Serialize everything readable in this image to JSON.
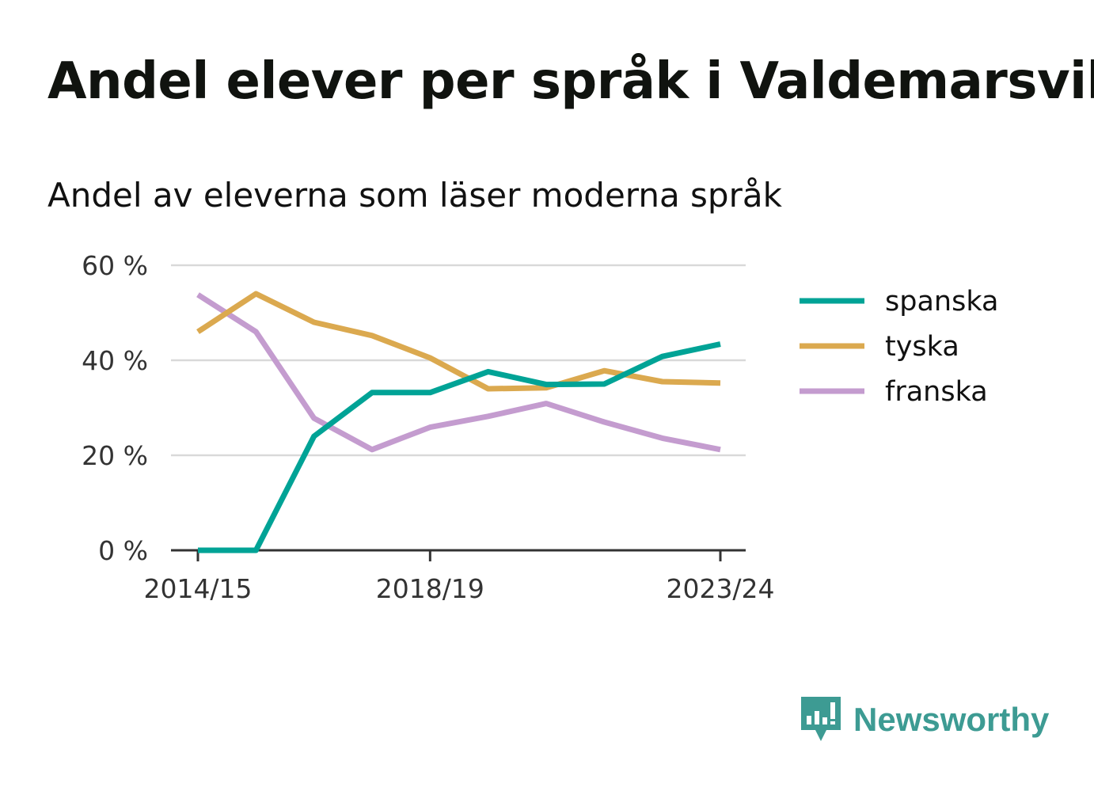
{
  "title": "Andel elever per språk i Valdemarsvik",
  "subtitle": "Andel av eleverna som läser moderna språk",
  "brand": {
    "name": "Newsworthy",
    "logo_icon": "newsworthy-bar-chart-bubble-icon",
    "color": "#3d9b93"
  },
  "chart_data": {
    "type": "line",
    "x": [
      "2014/15",
      "2015/16",
      "2016/17",
      "2017/18",
      "2018/19",
      "2019/20",
      "2020/21",
      "2021/22",
      "2022/23",
      "2023/24"
    ],
    "x_tick_labels": [
      "2014/15",
      "2018/19",
      "2023/24"
    ],
    "y_ticks": [
      0,
      20,
      40,
      60
    ],
    "y_tick_labels": [
      "0 %",
      "20 %",
      "40 %",
      "60 %"
    ],
    "ylim": [
      0,
      60
    ],
    "grid": true,
    "legend_position": "right",
    "series": [
      {
        "name": "spanska",
        "color": "#00a396",
        "values": [
          0,
          0,
          24.0,
          33.2,
          33.2,
          37.6,
          34.9,
          35.0,
          40.8,
          43.4
        ]
      },
      {
        "name": "tyska",
        "color": "#dba94f",
        "values": [
          46.0,
          54.0,
          48.0,
          45.2,
          40.5,
          34.0,
          34.2,
          37.8,
          35.5,
          35.2
        ]
      },
      {
        "name": "franska",
        "color": "#c49ccf",
        "values": [
          53.8,
          46.0,
          27.8,
          21.2,
          25.9,
          28.2,
          30.9,
          27.0,
          23.6,
          21.2
        ]
      }
    ]
  }
}
